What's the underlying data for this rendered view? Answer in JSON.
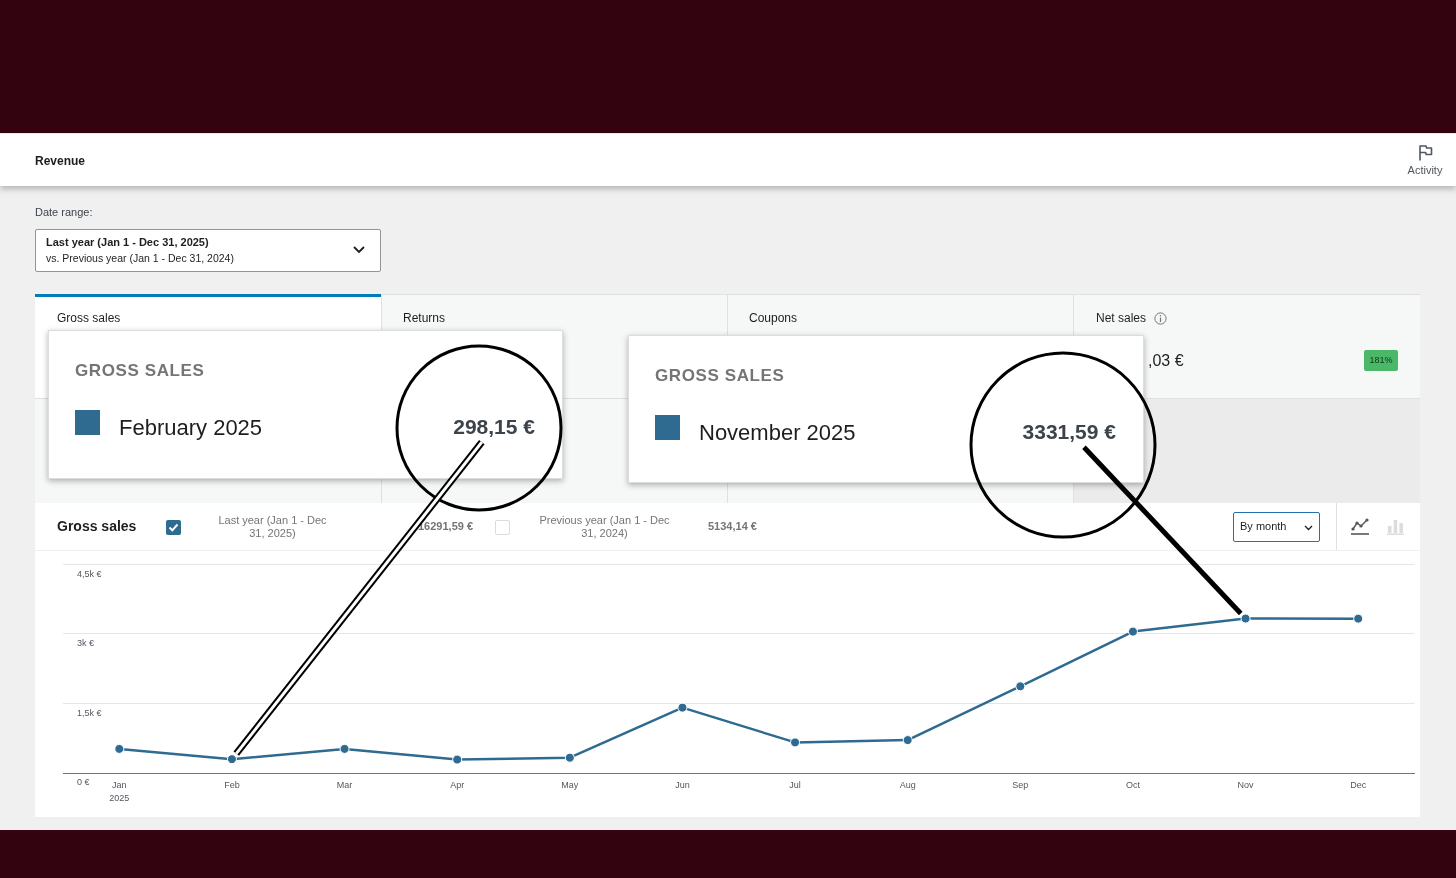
{
  "chart_data": {
    "type": "line",
    "title": "Gross sales",
    "categories": [
      "Jan\n2025",
      "Feb",
      "Mar",
      "Apr",
      "May",
      "Jun",
      "Jul",
      "Aug",
      "Sep",
      "Oct",
      "Nov",
      "Dec"
    ],
    "series": [
      {
        "name": "Last year (Jan 1 - Dec 31, 2025)",
        "color": "#2f6b91",
        "values": [
          520,
          298.15,
          520,
          290,
          330,
          1410,
          660,
          710,
          1870,
          3050,
          3331.59,
          3330
        ]
      }
    ],
    "ylim": [
      0,
      4500
    ],
    "yticks": [
      {
        "value": 0,
        "label": "0 €"
      },
      {
        "value": 1500,
        "label": "1,5k €"
      },
      {
        "value": 3000,
        "label": "3k €"
      },
      {
        "value": 4500,
        "label": "4,5k €"
      }
    ],
    "grid": "y",
    "legend": "top",
    "marker": "circle",
    "line_style": "solid",
    "annotations": [
      "Revenue",
      "Activity",
      "Date range:",
      "Last year (Jan 1 - Dec 31, 2025)",
      "vs. Previous year (Jan 1 - Dec 31, 2024)",
      "Gross sales",
      "Returns",
      "Coupons",
      "Net sales",
      ",03 €",
      "181%",
      "16291,59 €",
      "Previous year (Jan 1 - Dec 31, 2024)",
      "5134,14 €",
      "By month",
      "GROSS SALES",
      "February 2025",
      {
        "text": "298,15 €",
        "x": "Feb",
        "y": 298.15
      },
      "GROSS SALES",
      "November 2025",
      {
        "text": "3331,59 €",
        "x": "Nov",
        "y": 3331.59
      }
    ]
  }
}
